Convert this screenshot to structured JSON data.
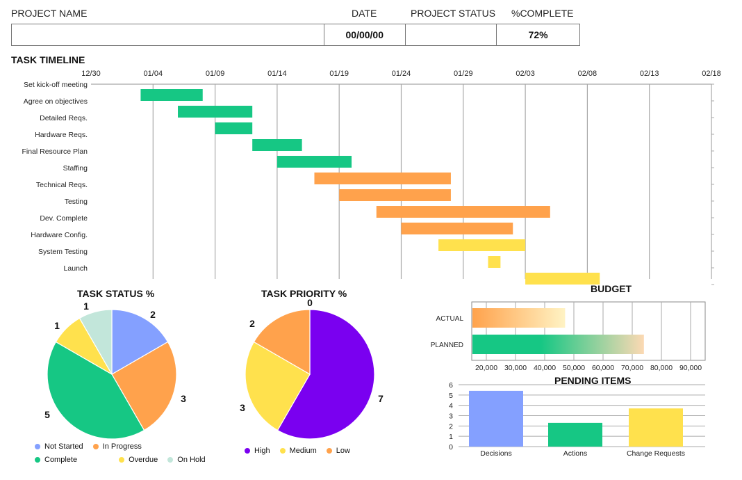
{
  "header": {
    "labels": {
      "project_name": "PROJECT NAME",
      "date": "DATE",
      "project_status": "PROJECT STATUS",
      "percent_complete": "%COMPLETE"
    },
    "values": {
      "project_name": "",
      "date": "00/00/00",
      "project_status": "",
      "percent_complete": "72%"
    }
  },
  "chart_data": [
    {
      "type": "gantt",
      "title": "TASK TIMELINE",
      "x_ticks": [
        "12/30",
        "01/04",
        "01/09",
        "01/14",
        "01/19",
        "01/24",
        "01/29",
        "02/03",
        "02/08",
        "02/13",
        "02/18"
      ],
      "tasks": [
        {
          "name": "Set kick-off meeting",
          "start": "01/03",
          "end": "01/08",
          "status": "Complete"
        },
        {
          "name": "Agree on objectives",
          "start": "01/06",
          "end": "01/12",
          "status": "Complete"
        },
        {
          "name": "Detailed Reqs.",
          "start": "01/09",
          "end": "01/12",
          "status": "Complete"
        },
        {
          "name": "Hardware Reqs.",
          "start": "01/12",
          "end": "01/16",
          "status": "Complete"
        },
        {
          "name": "Final Resource Plan",
          "start": "01/14",
          "end": "01/20",
          "status": "Complete"
        },
        {
          "name": "Staffing",
          "start": "01/17",
          "end": "01/28",
          "status": "In Progress"
        },
        {
          "name": "Technical Reqs.",
          "start": "01/19",
          "end": "01/28",
          "status": "In Progress"
        },
        {
          "name": "Testing",
          "start": "01/22",
          "end": "02/05",
          "status": "In Progress"
        },
        {
          "name": "Dev. Complete",
          "start": "01/24",
          "end": "02/02",
          "status": "In Progress"
        },
        {
          "name": "Hardware Config.",
          "start": "01/27",
          "end": "02/03",
          "status": "Overdue"
        },
        {
          "name": "System Testing",
          "start": "01/31",
          "end": "02/01",
          "status": "Overdue"
        },
        {
          "name": "Launch",
          "start": "02/03",
          "end": "02/09",
          "status": "Overdue"
        }
      ],
      "colors": {
        "Complete": "#16c784",
        "In Progress": "#ffa24c",
        "Overdue": "#ffe14d"
      }
    },
    {
      "type": "pie",
      "title": "TASK STATUS %",
      "slices": [
        {
          "name": "Not Started",
          "value": 2,
          "color": "#84a0ff"
        },
        {
          "name": "In Progress",
          "value": 3,
          "color": "#ffa24c"
        },
        {
          "name": "Complete",
          "value": 5,
          "color": "#16c784"
        },
        {
          "name": "Overdue",
          "value": 1,
          "color": "#ffe14d"
        },
        {
          "name": "On Hold",
          "value": 1,
          "color": "#c2e6da"
        }
      ],
      "legend": [
        "Not Started",
        "In Progress",
        "Complete",
        "Overdue",
        "On Hold"
      ]
    },
    {
      "type": "pie",
      "title": "TASK PRIORITY %",
      "slices": [
        {
          "name": "High",
          "value": 7,
          "color": "#7a00f0"
        },
        {
          "name": "Medium",
          "value": 3,
          "color": "#ffe14d"
        },
        {
          "name": "Low",
          "value": 2,
          "color": "#ffa24c"
        },
        {
          "name": "",
          "value": 0,
          "color": "#cccccc"
        }
      ],
      "legend": [
        "High",
        "Medium",
        "Low"
      ]
    },
    {
      "type": "bar",
      "orientation": "horizontal",
      "title": "BUDGET",
      "categories": [
        "ACTUAL",
        "PLANNED"
      ],
      "values": [
        47000,
        74000
      ],
      "x_ticks": [
        "20,000",
        "30,000",
        "40,000",
        "50,000",
        "60,000",
        "70,000",
        "80,000",
        "90,000"
      ],
      "xlim": [
        15000,
        95000
      ],
      "colors": [
        "#ffa24c",
        "#16c784"
      ]
    },
    {
      "type": "bar",
      "title": "PENDING ITEMS",
      "categories": [
        "Decisions",
        "Actions",
        "Change Requests"
      ],
      "values": [
        5.4,
        2.3,
        3.7
      ],
      "y_ticks": [
        "0",
        "1",
        "2",
        "3",
        "4",
        "5",
        "6"
      ],
      "ylim": [
        0,
        6
      ],
      "colors": [
        "#84a0ff",
        "#16c784",
        "#ffe14d"
      ]
    }
  ]
}
